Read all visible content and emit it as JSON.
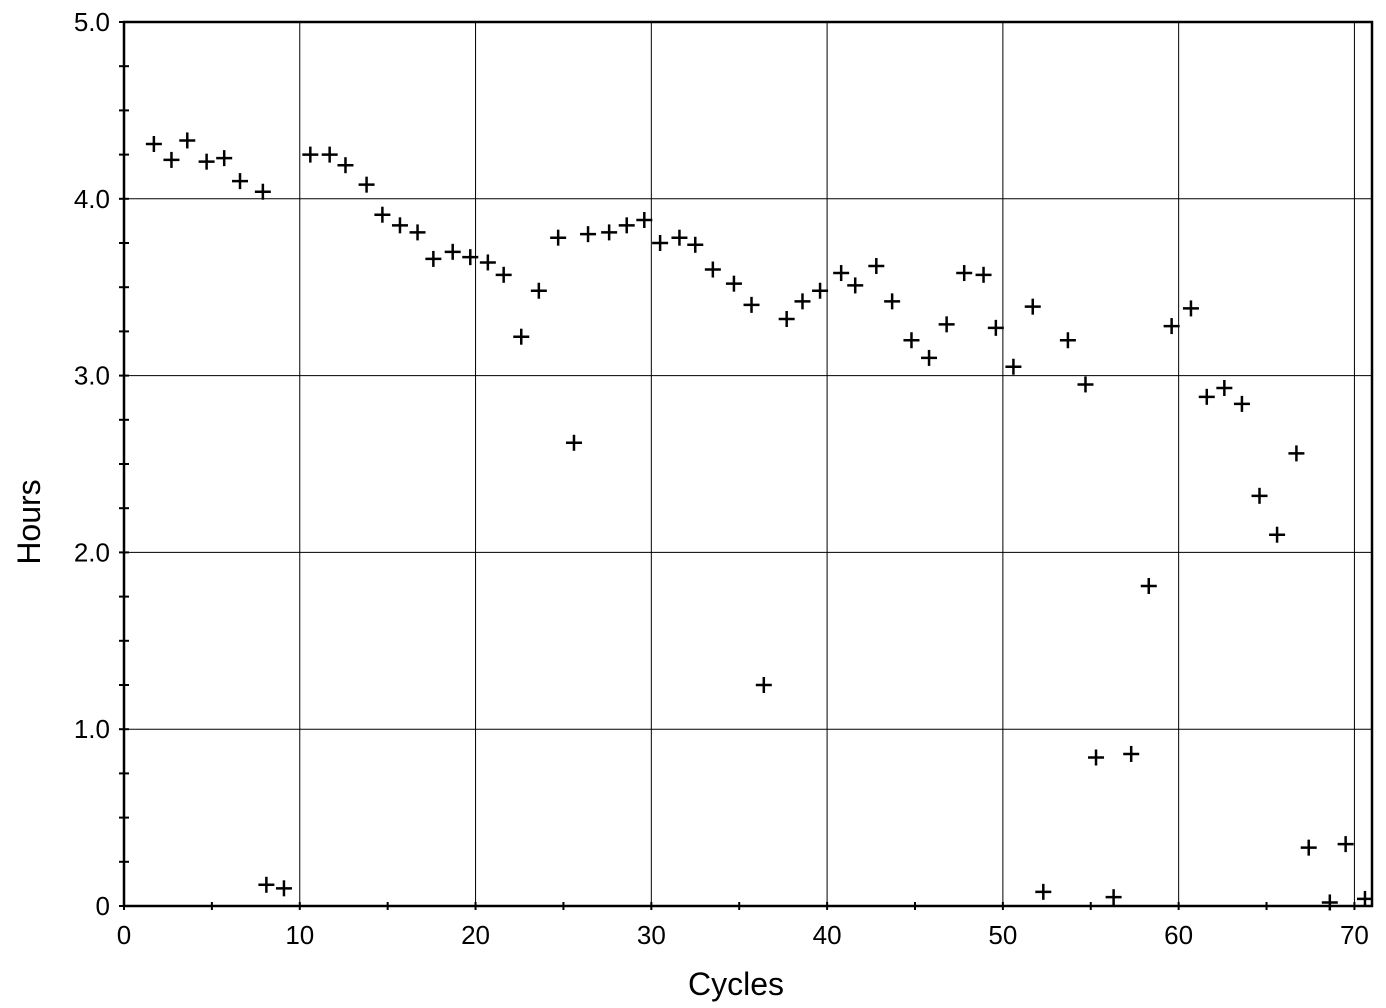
{
  "chart_data": {
    "type": "scatter",
    "title": "",
    "xlabel": "Cycles",
    "ylabel": "Hours",
    "xlim": [
      0,
      71
    ],
    "ylim": [
      0,
      5.0
    ],
    "x_ticks": [
      0,
      10,
      20,
      30,
      40,
      50,
      60,
      70
    ],
    "x_tick_labels": [
      "0",
      "10",
      "20",
      "30",
      "40",
      "50",
      "60",
      "70"
    ],
    "y_ticks": [
      0,
      1.0,
      2.0,
      3.0,
      4.0,
      5.0
    ],
    "y_tick_labels": [
      "0",
      "1.0",
      "2.0",
      "3.0",
      "4.0",
      "5.0"
    ],
    "grid": true,
    "marker": "plus",
    "series": [
      {
        "points": [
          [
            1.7,
            4.31
          ],
          [
            2.7,
            4.22
          ],
          [
            3.6,
            4.33
          ],
          [
            4.7,
            4.21
          ],
          [
            5.7,
            4.23
          ],
          [
            6.6,
            4.1
          ],
          [
            7.9,
            4.04
          ],
          [
            8.1,
            0.12
          ],
          [
            9.1,
            0.1
          ],
          [
            10.6,
            4.25
          ],
          [
            11.7,
            4.25
          ],
          [
            12.6,
            4.19
          ],
          [
            13.8,
            4.08
          ],
          [
            14.7,
            3.91
          ],
          [
            15.7,
            3.85
          ],
          [
            16.7,
            3.81
          ],
          [
            17.6,
            3.66
          ],
          [
            18.7,
            3.7
          ],
          [
            19.7,
            3.67
          ],
          [
            20.7,
            3.64
          ],
          [
            21.6,
            3.57
          ],
          [
            22.6,
            3.22
          ],
          [
            23.6,
            3.48
          ],
          [
            24.7,
            3.78
          ],
          [
            25.6,
            2.62
          ],
          [
            26.4,
            3.8
          ],
          [
            27.6,
            3.81
          ],
          [
            28.6,
            3.85
          ],
          [
            29.6,
            3.88
          ],
          [
            30.5,
            3.75
          ],
          [
            31.6,
            3.78
          ],
          [
            32.5,
            3.74
          ],
          [
            33.5,
            3.6
          ],
          [
            34.7,
            3.52
          ],
          [
            35.7,
            3.4
          ],
          [
            36.4,
            1.25
          ],
          [
            37.7,
            3.32
          ],
          [
            38.6,
            3.42
          ],
          [
            39.6,
            3.48
          ],
          [
            40.8,
            3.58
          ],
          [
            41.6,
            3.51
          ],
          [
            42.8,
            3.62
          ],
          [
            43.7,
            3.42
          ],
          [
            44.8,
            3.2
          ],
          [
            45.8,
            3.1
          ],
          [
            46.8,
            3.29
          ],
          [
            47.8,
            3.58
          ],
          [
            48.9,
            3.57
          ],
          [
            49.6,
            3.27
          ],
          [
            50.6,
            3.05
          ],
          [
            51.7,
            3.39
          ],
          [
            52.3,
            0.08
          ],
          [
            53.7,
            3.2
          ],
          [
            54.7,
            2.95
          ],
          [
            55.3,
            0.84
          ],
          [
            56.3,
            0.05
          ],
          [
            57.3,
            0.86
          ],
          [
            58.3,
            1.81
          ],
          [
            59.6,
            3.28
          ],
          [
            60.7,
            3.38
          ],
          [
            61.6,
            2.88
          ],
          [
            62.6,
            2.93
          ],
          [
            63.6,
            2.84
          ],
          [
            64.6,
            2.32
          ],
          [
            65.6,
            2.1
          ],
          [
            66.7,
            2.56
          ],
          [
            67.4,
            0.33
          ],
          [
            68.6,
            0.02
          ],
          [
            69.5,
            0.35
          ],
          [
            70.6,
            0.04
          ]
        ]
      }
    ]
  }
}
